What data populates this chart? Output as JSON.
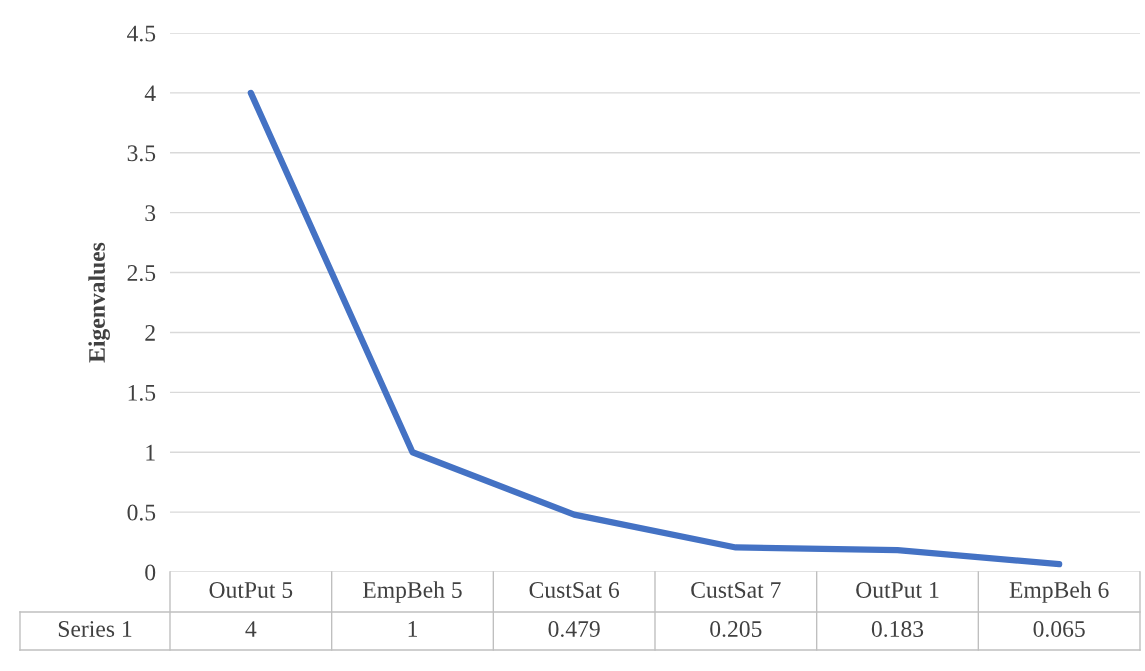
{
  "chart_data": {
    "type": "line",
    "ylabel": "Eigenvalues",
    "categories": [
      "OutPut 5",
      "EmpBeh 5",
      "CustSat 6",
      "CustSat 7",
      "OutPut 1",
      "EmpBeh 6"
    ],
    "series": [
      {
        "name": "Series 1",
        "color": "#4472c4",
        "values": [
          4,
          1,
          0.479,
          0.205,
          0.183,
          0.065
        ]
      }
    ],
    "ylim": [
      0,
      4.5
    ],
    "yticks": [
      0,
      0.5,
      1,
      1.5,
      2,
      2.5,
      3,
      3.5,
      4,
      4.5
    ],
    "grid": "y",
    "legend": false,
    "marker": "none",
    "line_style": "solid",
    "data_labels": true
  }
}
